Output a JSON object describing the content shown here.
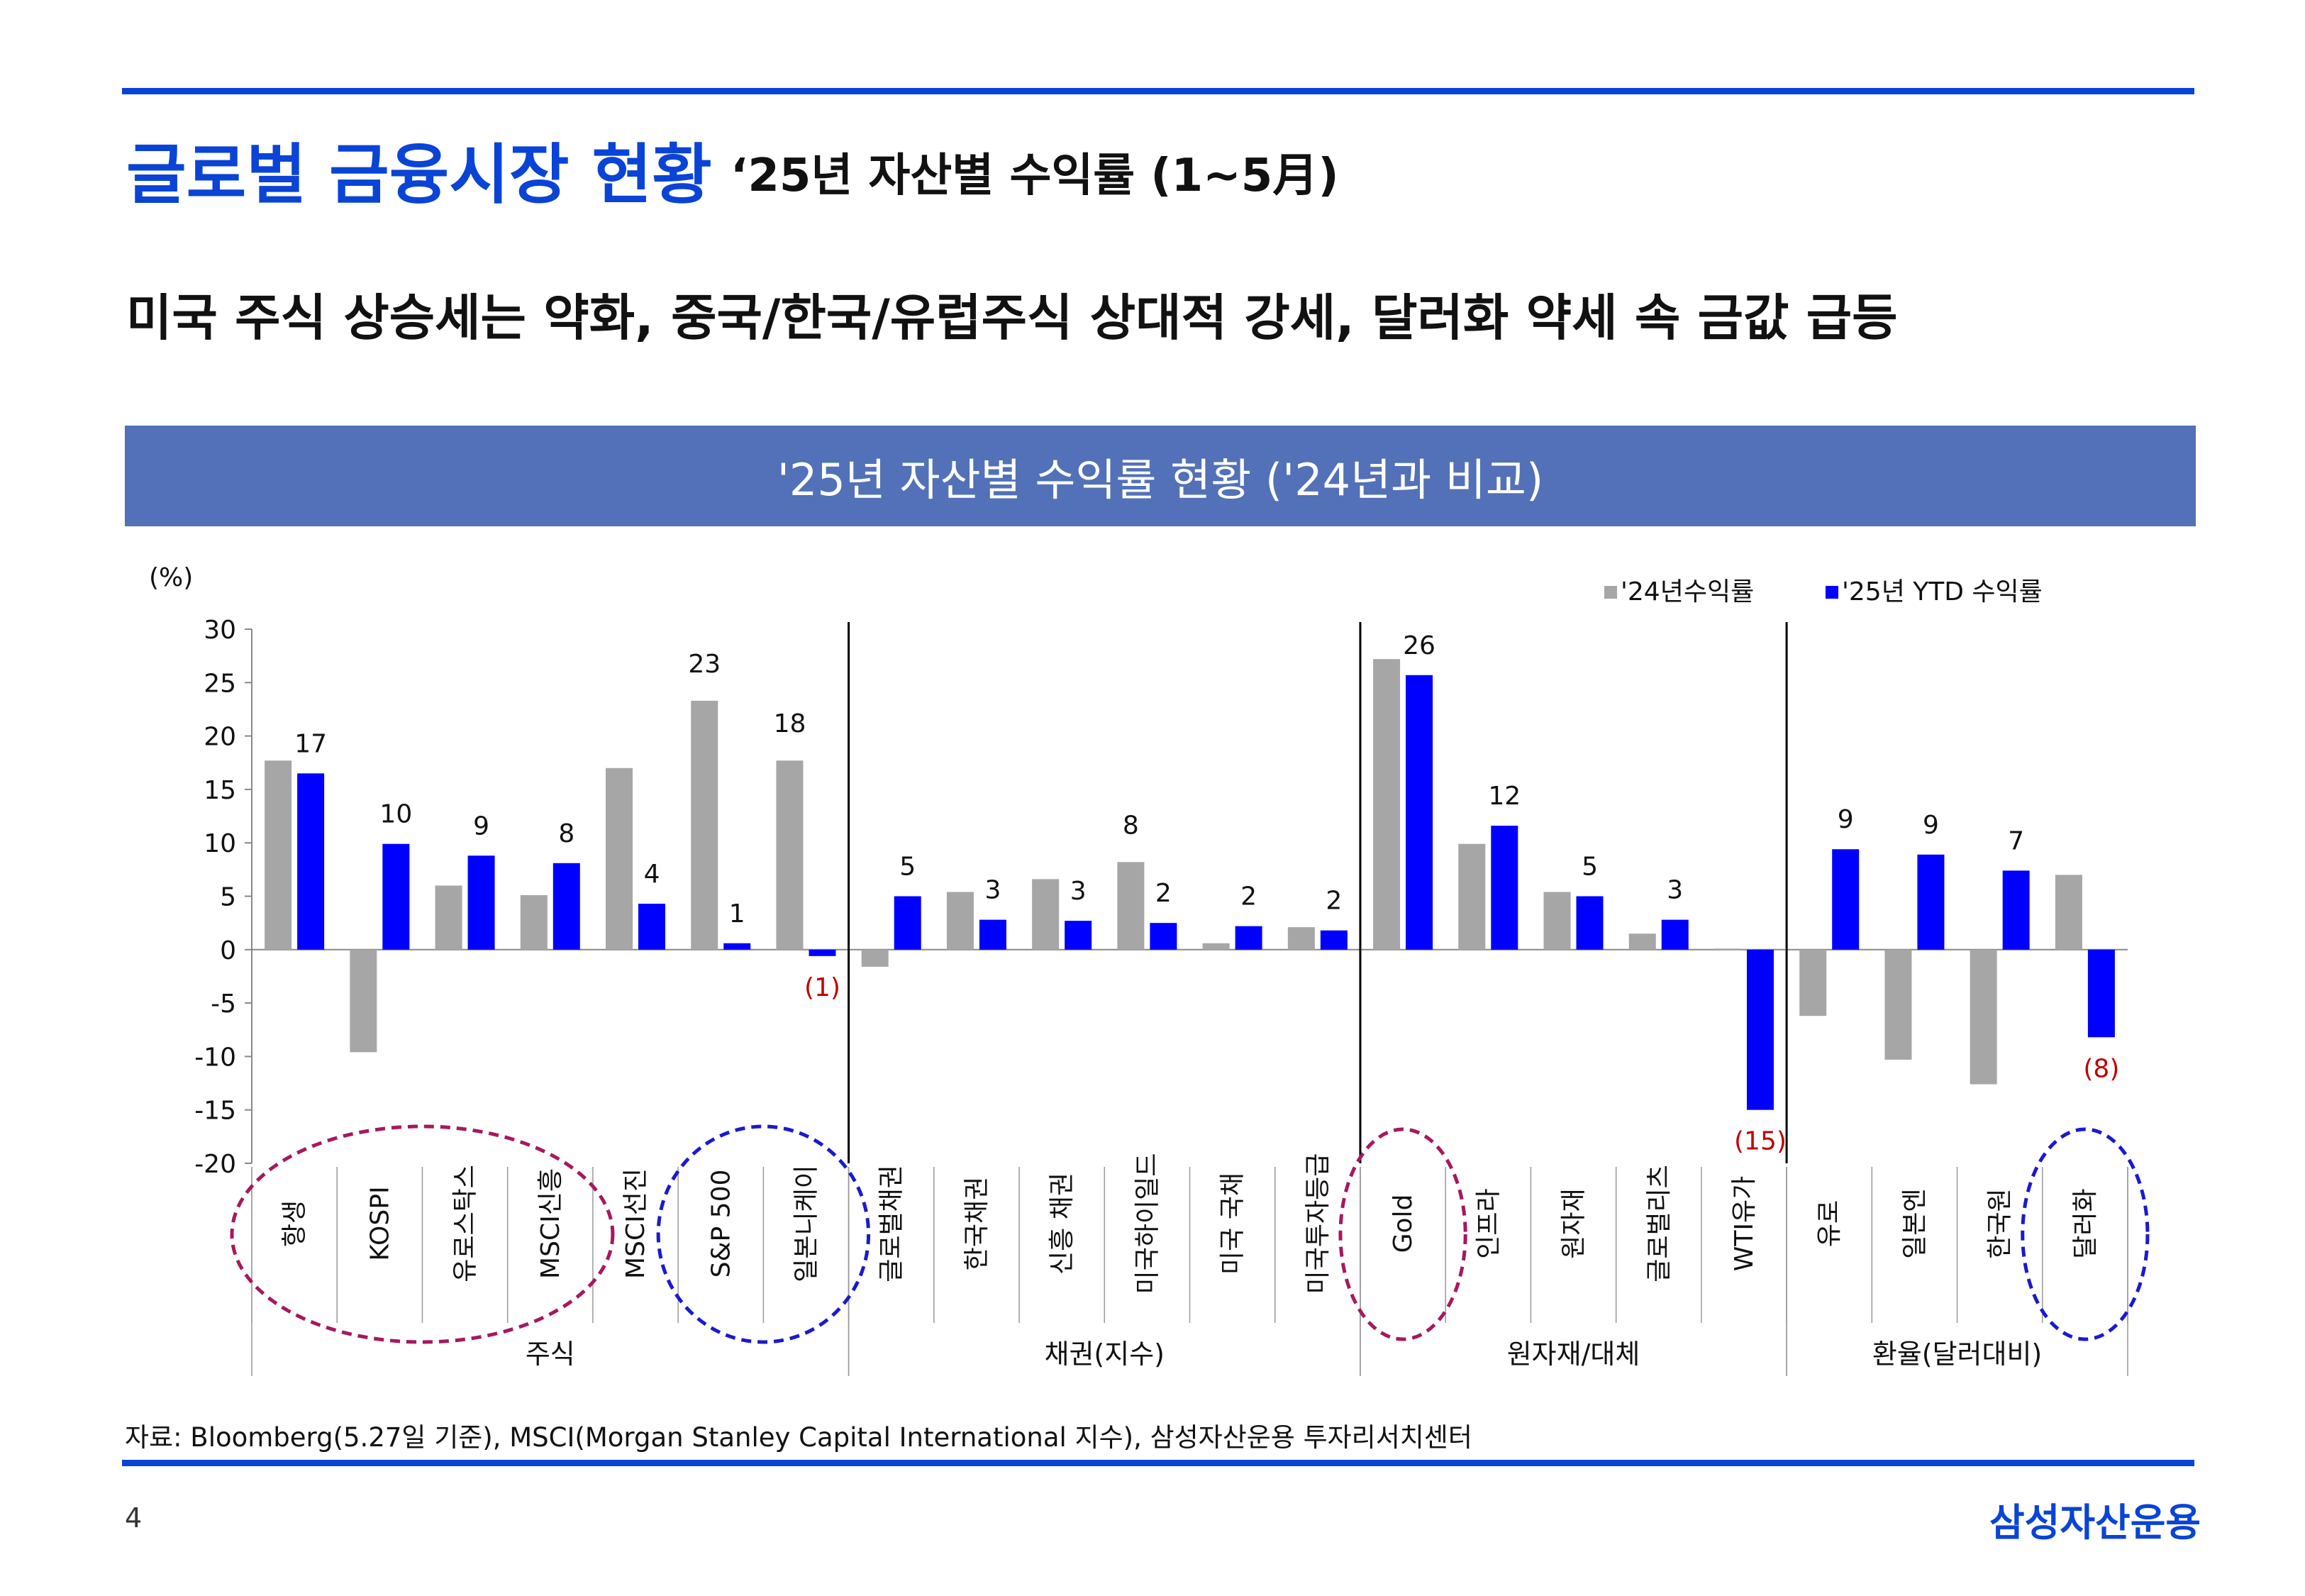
{
  "header": {
    "title": "글로벌 금융시장 현황",
    "subtitle": "‘25년 자산별 수익률 (1~5月)"
  },
  "headline": "미국 주식 상승세는 약화, 중국/한국/유럽주식 상대적 강세, 달러화 약세 속 금값 급등",
  "banner_title": "'25년 자산별 수익률 현황 ('24년과 비교)",
  "colors": {
    "accent": "#0a44d6",
    "banner": "#5271b8",
    "series_2024": "#a6a6a6",
    "series_2025": "#0000ff",
    "negative_label": "#c00000",
    "circle_maroon": "#a5195e",
    "circle_blue": "#1a1ad0"
  },
  "chart_data": {
    "type": "bar",
    "unit_label": "(%)",
    "ylim": [
      -20,
      30
    ],
    "yticks": [
      30,
      25,
      20,
      15,
      10,
      5,
      0,
      -5,
      -10,
      -15,
      -20
    ],
    "legend_position": "top-right",
    "grid": false,
    "categories": [
      "항생",
      "KOSPI",
      "유로스탁스",
      "MSCI신흥",
      "MSCI선진",
      "S&P 500",
      "일본니케이",
      "글로벌채권",
      "한국채권",
      "신흥 채권",
      "미국하이일드",
      "미국 국채",
      "미국투자등급",
      "Gold",
      "인프라",
      "원자재",
      "글로벌리츠",
      "WTI유가",
      "유로",
      "일본엔",
      "한국원",
      "달러화"
    ],
    "groups": [
      {
        "name": "주식",
        "count": 7
      },
      {
        "name": "채권(지수)",
        "count": 6
      },
      {
        "name": "원자재/대체",
        "count": 5
      },
      {
        "name": "환율(달러대비)",
        "count": 4
      }
    ],
    "series": [
      {
        "name": "'24년수익률",
        "values": [
          17.7,
          -9.6,
          6.0,
          5.1,
          17.0,
          23.3,
          17.7,
          -1.6,
          5.4,
          6.6,
          8.2,
          0.6,
          2.1,
          27.2,
          9.9,
          5.4,
          1.5,
          0.1,
          -6.2,
          -10.3,
          -12.6,
          7.0
        ]
      },
      {
        "name": "'25년 YTD 수익률",
        "values": [
          16.5,
          9.9,
          8.8,
          8.1,
          4.3,
          0.6,
          -0.6,
          5.0,
          2.8,
          2.7,
          2.5,
          2.2,
          1.8,
          25.7,
          11.6,
          5.0,
          2.8,
          -15.0,
          9.4,
          8.9,
          7.4,
          -8.2
        ]
      }
    ],
    "data_labels": [
      "17",
      "10",
      "9",
      "8",
      "4",
      "1",
      "(1)",
      "5",
      "3",
      "3",
      "2",
      "2",
      "2",
      "26",
      "12",
      "5",
      "3",
      "(15)",
      "9",
      "9",
      "7",
      "(8)"
    ],
    "extra_labels": [
      {
        "category_index": 10,
        "text": "8"
      },
      {
        "category_index": 5,
        "text": "23"
      },
      {
        "category_index": 6,
        "text": "18"
      }
    ],
    "highlight_circles": [
      {
        "from": 0,
        "to": 3,
        "color": "maroon"
      },
      {
        "from": 5,
        "to": 6,
        "color": "blue"
      },
      {
        "from": 13,
        "to": 13,
        "color": "maroon"
      },
      {
        "from": 21,
        "to": 21,
        "color": "blue"
      }
    ]
  },
  "source": "자료: Bloomberg(5.27일 기준), MSCI(Morgan Stanley Capital International 지수), 삼성자산운용 투자리서치센터",
  "footer": {
    "page_number": "4",
    "brand": "삼성자산운용"
  }
}
